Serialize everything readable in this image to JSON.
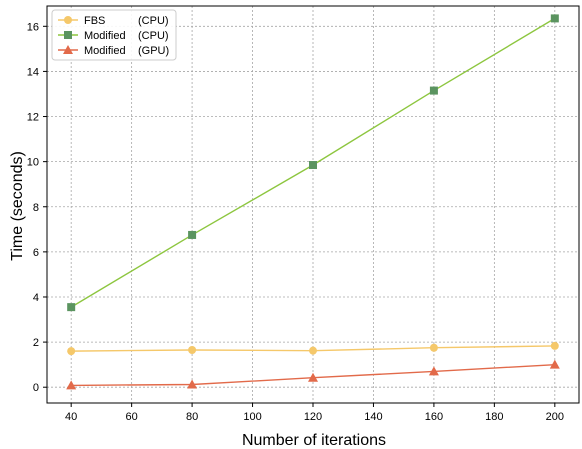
{
  "chart_data": {
    "type": "line",
    "xlabel": "Number of iterations",
    "ylabel": "Time (seconds)",
    "xlim": [
      32,
      208
    ],
    "ylim": [
      -0.7,
      16.9
    ],
    "xticks": [
      40,
      60,
      80,
      100,
      120,
      140,
      160,
      180,
      200
    ],
    "yticks": [
      0,
      2,
      4,
      6,
      8,
      10,
      12,
      14,
      16
    ],
    "grid": true,
    "legend_position": "top-left",
    "x": [
      40,
      80,
      120,
      160,
      200
    ],
    "series": [
      {
        "name": "FBS",
        "tag": "(CPU)",
        "values": [
          1.6,
          1.65,
          1.62,
          1.75,
          1.83
        ],
        "color": "#f5c86a",
        "marker": "circle"
      },
      {
        "name": "Modified",
        "tag": "(CPU)",
        "values": [
          3.55,
          6.75,
          9.85,
          13.15,
          16.35
        ],
        "color": "#8dc63f",
        "markerColor": "#5b9460",
        "marker": "square"
      },
      {
        "name": "Modified",
        "tag": "(GPU)",
        "values": [
          0.08,
          0.12,
          0.42,
          0.7,
          1.0
        ],
        "color": "#e26a4a",
        "marker": "triangle"
      }
    ]
  }
}
